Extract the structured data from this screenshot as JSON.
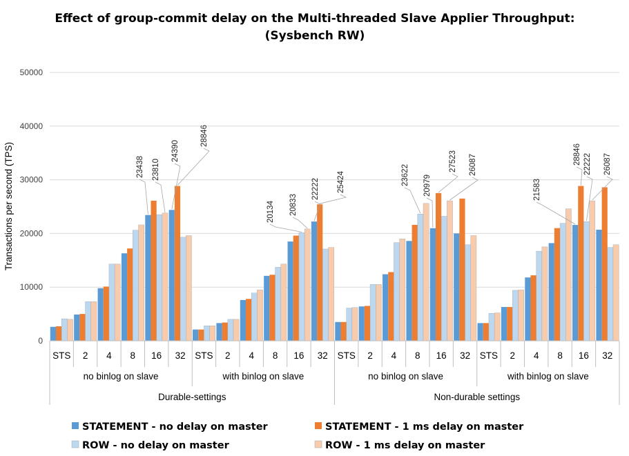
{
  "chart_data": {
    "type": "bar",
    "title": "Effect of group-commit delay on the Multi-threaded Slave Applier Throughput:",
    "subtitle": "(Sysbench RW)",
    "ylabel": "Transactions per second (TPS)",
    "xlabel": "",
    "ylim": [
      0,
      50000
    ],
    "yticks": [
      0,
      10000,
      20000,
      30000,
      40000,
      50000
    ],
    "grid": true,
    "legend_position": "bottom",
    "categories": [
      "STS",
      "2",
      "4",
      "8",
      "16",
      "32",
      "STS",
      "2",
      "4",
      "8",
      "16",
      "32",
      "STS",
      "2",
      "4",
      "8",
      "16",
      "32",
      "STS",
      "2",
      "4",
      "8",
      "16",
      "32"
    ],
    "subgroups": [
      "no binlog on slave",
      "with binlog on slave",
      "no binlog on slave",
      "with binlog on slave"
    ],
    "groups": [
      "Durable-settings",
      "Non-durable settings"
    ],
    "series": [
      {
        "name": "STATEMENT - no delay on master",
        "color": "#5B9BD5",
        "values": [
          2600,
          4900,
          9800,
          16300,
          23438,
          24390,
          2100,
          3300,
          7600,
          12100,
          18500,
          22222,
          3500,
          6400,
          12400,
          18600,
          20979,
          20000,
          3300,
          6300,
          11800,
          18200,
          21583,
          20700
        ]
      },
      {
        "name": "STATEMENT - 1 ms delay on master",
        "color": "#ED7D31",
        "values": [
          2700,
          5000,
          10100,
          17200,
          26100,
          28846,
          2100,
          3400,
          7800,
          12300,
          19600,
          25424,
          3500,
          6500,
          12800,
          21600,
          27523,
          26500,
          3300,
          6300,
          12200,
          21000,
          28846,
          28600
        ]
      },
      {
        "name": "ROW - no delay on master",
        "color": "#BDD7EE",
        "values": [
          4100,
          7300,
          14300,
          20600,
          23500,
          19300,
          2800,
          4000,
          8900,
          13700,
          20134,
          17100,
          6100,
          10500,
          18300,
          23622,
          23200,
          17900,
          5100,
          9400,
          16700,
          21900,
          22222,
          17400
        ]
      },
      {
        "name": "ROW - 1 ms delay on master",
        "color": "#F8CBAD",
        "values": [
          4000,
          7300,
          14300,
          21600,
          23810,
          19600,
          2800,
          4000,
          9500,
          14300,
          20833,
          17400,
          6200,
          10500,
          19000,
          25600,
          26087,
          19600,
          5200,
          9500,
          17500,
          24600,
          26087,
          17900
        ]
      }
    ],
    "annotations": [
      {
        "group_index": 4,
        "series_index": 0,
        "text": "23438"
      },
      {
        "group_index": 4,
        "series_index": 3,
        "text": "23810"
      },
      {
        "group_index": 5,
        "series_index": 0,
        "text": "24390"
      },
      {
        "group_index": 5,
        "series_index": 1,
        "text": "28846"
      },
      {
        "group_index": 10,
        "series_index": 2,
        "text": "20134"
      },
      {
        "group_index": 10,
        "series_index": 3,
        "text": "20833"
      },
      {
        "group_index": 11,
        "series_index": 0,
        "text": "22222"
      },
      {
        "group_index": 11,
        "series_index": 1,
        "text": "25424"
      },
      {
        "group_index": 15,
        "series_index": 2,
        "text": "23622"
      },
      {
        "group_index": 16,
        "series_index": 0,
        "text": "20979"
      },
      {
        "group_index": 16,
        "series_index": 1,
        "text": "27523"
      },
      {
        "group_index": 16,
        "series_index": 3,
        "text": "26087"
      },
      {
        "group_index": 22,
        "series_index": 0,
        "text": "21583"
      },
      {
        "group_index": 22,
        "series_index": 1,
        "text": "28846"
      },
      {
        "group_index": 22,
        "series_index": 2,
        "text": "22222"
      },
      {
        "group_index": 22,
        "series_index": 3,
        "text": "26087"
      }
    ]
  }
}
